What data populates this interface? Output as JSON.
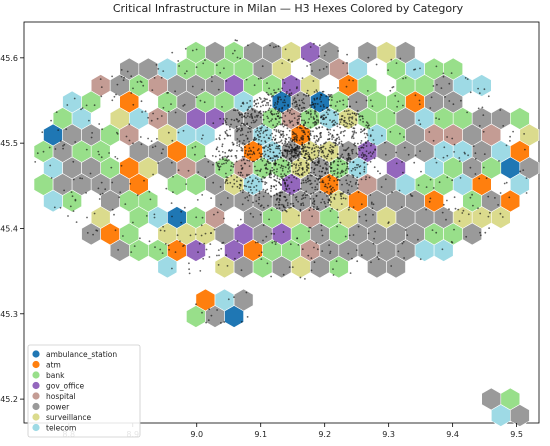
{
  "chart_data": {
    "type": "scatter",
    "title": "Critical Infrastructure in Milan — H3 Hexes Colored by Category",
    "xlabel": "",
    "ylabel": "",
    "xlim": [
      8.73,
      9.535
    ],
    "ylim": [
      45.172,
      45.642
    ],
    "x_ticks": [
      8.8,
      8.9,
      9.0,
      9.1,
      9.2,
      9.3,
      9.4,
      9.5
    ],
    "y_ticks": [
      45.2,
      45.3,
      45.4,
      45.5,
      45.6
    ],
    "x_tick_labels": [
      "8.8",
      "8.9",
      "9.0",
      "9.1",
      "9.2",
      "9.3",
      "9.4",
      "9.5"
    ],
    "y_tick_labels": [
      "45.2",
      "45.3",
      "45.4",
      "45.5",
      "45.6"
    ],
    "grid": false,
    "legend_position": "lower-left",
    "categories": [
      {
        "name": "ambulance_station",
        "color": "#1f77b4"
      },
      {
        "name": "atm",
        "color": "#ff7f0e"
      },
      {
        "name": "bank",
        "color": "#98df8a"
      },
      {
        "name": "gov_office",
        "color": "#9467bd"
      },
      {
        "name": "hospital",
        "color": "#c49c94"
      },
      {
        "name": "power",
        "color": "#9a9a9a"
      },
      {
        "name": "surveillance",
        "color": "#dbdb8d"
      },
      {
        "name": "telecom",
        "color": "#9edae5"
      }
    ],
    "hex_codes": [
      "00000000000000000000000000000000000000000000000000000000000000000000000000000000000000000000000000000000",
      "00000000000000000000000000000000000000000000000000000000000000000000000000000000000000000000000000000000",
      "00000000000000000000000000000000000000000000000000000000000000000000000000000000000000000000000000000000",
      "00000000000000000000000000000000000000000000000000000000000000000000000000000000000000000000000000000000",
      "00000000000000000000000000000000000000000000000000000000000000000000000000000000000000000000000000000000",
      "00000000000000000000000000000000000000000000000000000000000000000000000000000000000000000000000000000000",
      "00000000000000000000000000000000000000000000000000000000000000000000000000000000000000000000000000000000",
      "00000000000000000000000000000000000000000000000000000000000000000000000000000000000000000000000000000000",
      "00000000000000000000000000000000000000000000000000000000000000000000000000000000000000000000000000000000",
      "00000000000000000000000000000000000000000000000000000000000000000000000000000000000000000000000000000000",
      "00000000000000000000000000000000000000000000000000000000000000000000000000000000000000000000000000000000",
      "00000000000000000000000000000000000000000000000000000000000000000000000000000000000000000000000000000000",
      "00000000000000000000000000000000000000000000000000000000000000000000000000000000000000000000000000000000",
      "00000000000000000000000000000000000000000000000000000000000000000000000000000000000000000000000000000000",
      "00000000000000000000000000000000000000000000000000000000000000000000000000000000000000000000000000000000",
      "00000000000000000000000000000000000000000000000000000000000000000000000000000000000000000000000000000000",
      "00000000000000000000000000000000000000000000000000000000000000000000000000000000000000000000000000000000",
      "00000000000000000000000000000000000000000000000000000000000000000000000000000000000000000000000000000000",
      "00000000000000000000000000000000000000000000000000000000000000000000000000000000000000000000000000000000",
      "00000000000000000000000000000000000000000000000000000000000000000000000000000000000000000000000000000000",
      "00000000000000000000000000000000000000000000000000000000000000000000000000000000000000000000000000000000"
    ]
  }
}
